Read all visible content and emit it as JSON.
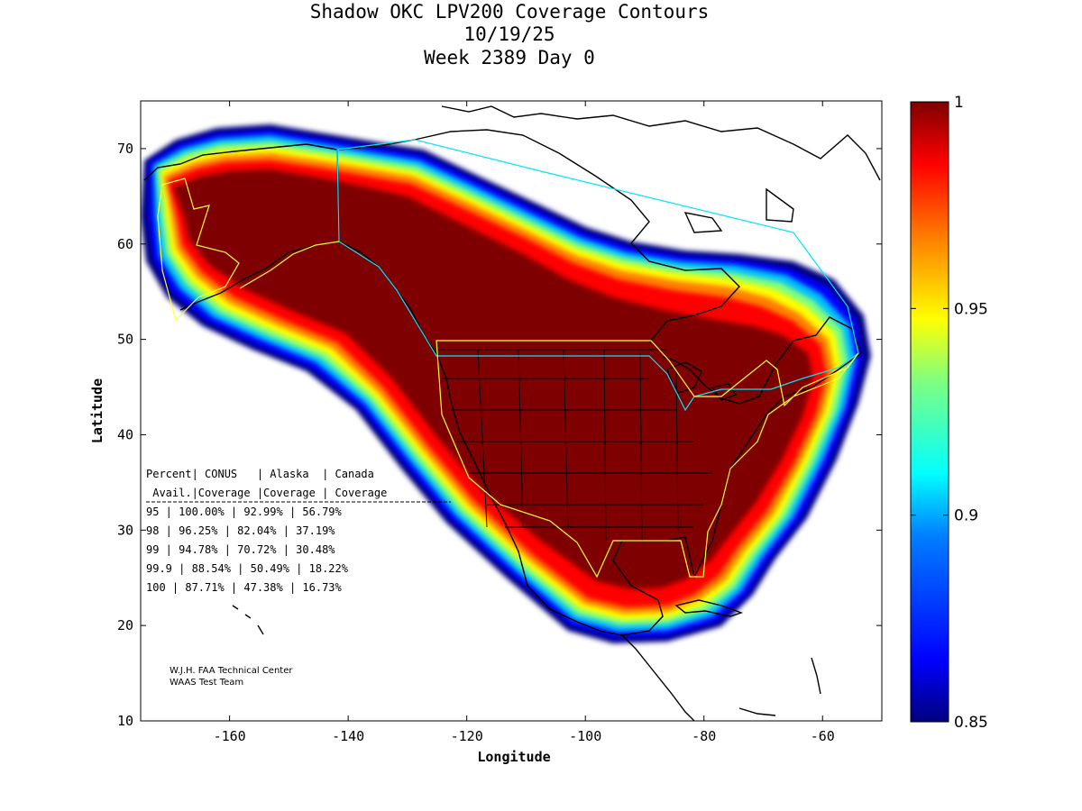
{
  "title": {
    "line1": "Shadow OKC LPV200 Coverage Contours",
    "line2": "10/19/25",
    "line3": "Week 2389 Day 0"
  },
  "axes": {
    "xlabel": "Longitude",
    "ylabel": "Latitude",
    "xlim": [
      -175,
      -50
    ],
    "ylim": [
      10,
      75
    ],
    "xticks": [
      -160,
      -140,
      -120,
      -100,
      -80,
      -60
    ],
    "yticks": [
      10,
      20,
      30,
      40,
      50,
      60,
      70
    ]
  },
  "colorbar": {
    "range": [
      0.85,
      1
    ],
    "ticks": [
      "1",
      "0.95",
      "0.9",
      "0.85"
    ],
    "colors": [
      "#00007f",
      "#0000ff",
      "#007fff",
      "#00ffff",
      "#7fff7f",
      "#ffff00",
      "#ff7f00",
      "#ff0000",
      "#7f0000"
    ]
  },
  "stats_table": {
    "header1": "Percent| CONUS   | Alaska  | Canada",
    "header2": " Avail.|Coverage |Coverage | Coverage",
    "rows": [
      "  95   | 100.00%  | 92.99% | 56.79%",
      "  98   | 96.25%  | 82.04% | 37.19%",
      "  99   | 94.78%  | 70.72% | 30.48%",
      "99.9   | 88.54%  | 50.49% | 18.22%",
      " 100   | 87.71%  | 47.38% | 16.73%"
    ]
  },
  "credit": {
    "line1": "W.J.H. FAA Technical Center",
    "line2": "WAAS Test Team"
  }
}
